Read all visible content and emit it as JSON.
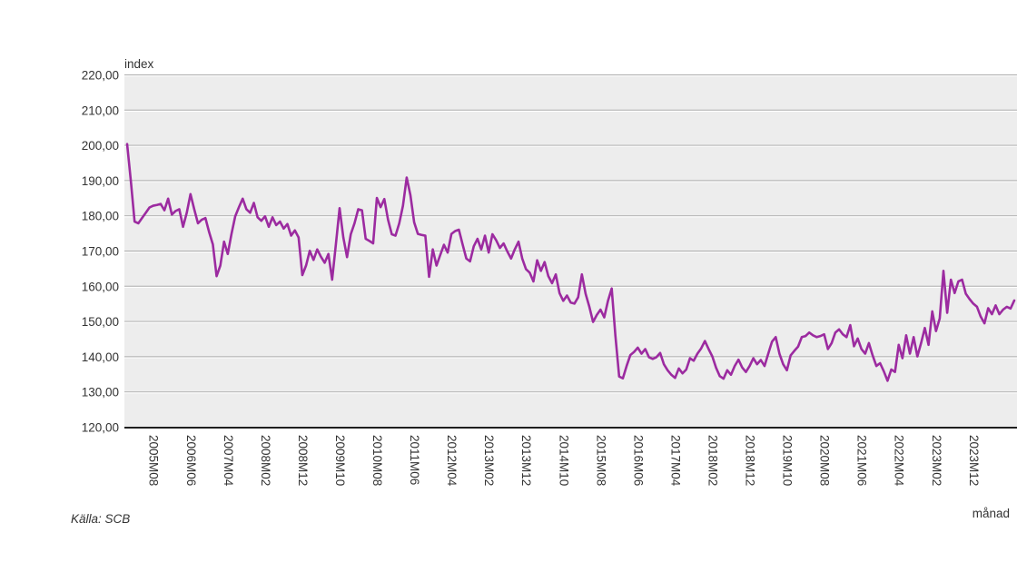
{
  "page": {
    "y_axis_title": "index",
    "x_axis_title": "månad",
    "source_note": "Källa: SCB"
  },
  "chart_data": {
    "type": "line",
    "title": "",
    "ylabel": "index",
    "xlabel": "månad",
    "source": "Källa: SCB",
    "ylim": [
      120,
      220
    ],
    "y_tick_step": 10,
    "y_tick_labels": [
      "120,00",
      "130,00",
      "140,00",
      "150,00",
      "160,00",
      "170,00",
      "180,00",
      "190,00",
      "200,00",
      "210,00",
      "220,00"
    ],
    "x_months_start": "2005M01",
    "x_months_end": "2024M11",
    "n_points": 239,
    "x_tick_month_indices": [
      7,
      17,
      27,
      37,
      47,
      57,
      67,
      77,
      87,
      97,
      107,
      117,
      127,
      137,
      147,
      157,
      167,
      177,
      187,
      197,
      207,
      217,
      227
    ],
    "x_tick_labels": [
      "2005M08",
      "2006M06",
      "2007M04",
      "2008M02",
      "2008M12",
      "2009M10",
      "2010M08",
      "2011M06",
      "2012M04",
      "2013M02",
      "2013M12",
      "2014M10",
      "2015M08",
      "2016M06",
      "2017M04",
      "2018M02",
      "2018M12",
      "2019M10",
      "2020M08",
      "2021M06",
      "2022M04",
      "2023M02",
      "2023M12"
    ],
    "grid": true,
    "legend": "none",
    "series": [
      {
        "name": "index",
        "color": "#9c2ba0",
        "values": [
          200.5,
          190.0,
          178.5,
          178.0,
          179.5,
          181.0,
          182.5,
          183.0,
          183.2,
          183.5,
          181.7,
          185.0,
          180.5,
          181.5,
          182.0,
          177.0,
          181.0,
          186.3,
          182.0,
          178.0,
          179.0,
          179.5,
          175.5,
          172.0,
          163.0,
          166.0,
          172.8,
          169.3,
          175.0,
          180.0,
          182.6,
          185.0,
          182.0,
          181.0,
          183.8,
          179.7,
          178.7,
          180.0,
          177.0,
          179.7,
          177.5,
          178.5,
          176.5,
          177.8,
          174.5,
          176.0,
          174.0,
          163.3,
          166.0,
          170.2,
          167.6,
          170.6,
          168.5,
          166.8,
          169.3,
          162.0,
          172.0,
          182.3,
          174.0,
          168.4,
          174.9,
          178.0,
          182.0,
          181.7,
          173.6,
          173.0,
          172.3,
          185.2,
          182.6,
          184.9,
          179.0,
          174.9,
          174.5,
          178.0,
          183.0,
          191.0,
          186.0,
          178.3,
          175.0,
          174.7,
          174.5,
          162.8,
          170.6,
          166.0,
          169.0,
          171.9,
          169.7,
          175.0,
          175.8,
          176.2,
          172.0,
          168.0,
          167.2,
          171.5,
          173.6,
          170.6,
          174.5,
          169.7,
          174.9,
          173.2,
          171.0,
          172.3,
          170.0,
          168.0,
          170.6,
          172.8,
          168.0,
          165.0,
          164.0,
          161.5,
          167.5,
          164.5,
          167.0,
          163.0,
          161.0,
          163.5,
          158.2,
          156.0,
          157.5,
          155.5,
          155.2,
          157.0,
          163.5,
          158.0,
          154.3,
          150.0,
          152.0,
          153.5,
          151.3,
          156.0,
          159.5,
          146.0,
          134.5,
          134.0,
          137.5,
          140.6,
          141.5,
          142.7,
          141.0,
          142.3,
          140.0,
          139.5,
          140.0,
          141.2,
          138.0,
          136.3,
          135.0,
          134.1,
          136.8,
          135.4,
          136.5,
          139.7,
          139.0,
          141.0,
          142.5,
          144.6,
          142.3,
          140.2,
          137.0,
          134.6,
          133.9,
          136.3,
          135.0,
          137.5,
          139.3,
          137.1,
          135.8,
          137.5,
          139.7,
          138.0,
          139.2,
          137.5,
          141.0,
          144.4,
          145.7,
          141.0,
          138.0,
          136.3,
          140.5,
          141.8,
          143.0,
          145.7,
          146.0,
          147.0,
          146.2,
          145.7,
          146.0,
          146.5,
          142.3,
          144.0,
          147.0,
          147.9,
          146.5,
          145.7,
          149.1,
          143.1,
          145.3,
          142.3,
          141.0,
          144.0,
          140.5,
          137.5,
          138.3,
          136.0,
          133.3,
          136.5,
          135.8,
          143.5,
          139.7,
          146.2,
          141.0,
          145.7,
          140.2,
          144.0,
          148.3,
          143.5,
          153.0,
          147.4,
          151.0,
          164.5,
          152.6,
          162.0,
          158.2,
          161.5,
          162.0,
          158.0,
          156.5,
          155.2,
          154.3,
          151.5,
          149.6,
          153.9,
          152.2,
          154.7,
          152.2,
          153.5,
          154.3,
          153.8,
          156.1
        ]
      }
    ],
    "styles": {
      "plot_bg": "#ededed",
      "grid_dark": "#ababab",
      "grid_light": "#ffffff",
      "axis_color": "#000000",
      "text_color": "#333333",
      "line_width": 2.6
    }
  }
}
